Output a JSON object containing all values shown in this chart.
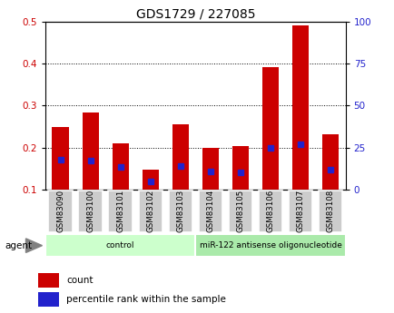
{
  "title": "GDS1729 / 227085",
  "samples": [
    "GSM83090",
    "GSM83100",
    "GSM83101",
    "GSM83102",
    "GSM83103",
    "GSM83104",
    "GSM83105",
    "GSM83106",
    "GSM83107",
    "GSM83108"
  ],
  "count_values": [
    0.248,
    0.283,
    0.209,
    0.148,
    0.256,
    0.2,
    0.204,
    0.393,
    0.491,
    0.231
  ],
  "percentile_values": [
    0.172,
    0.168,
    0.153,
    0.118,
    0.155,
    0.143,
    0.14,
    0.2,
    0.208,
    0.147
  ],
  "bar_color": "#cc0000",
  "marker_color": "#2222cc",
  "ylim": [
    0.1,
    0.5
  ],
  "yticks_left": [
    0.1,
    0.2,
    0.3,
    0.4,
    0.5
  ],
  "yticks_right": [
    0,
    25,
    50,
    75,
    100
  ],
  "ylabel_left_color": "#cc0000",
  "ylabel_right_color": "#2222cc",
  "groups": [
    {
      "label": "control",
      "start": 0,
      "end": 5,
      "color": "#ccffcc"
    },
    {
      "label": "miR-122 antisense oligonucleotide",
      "start": 5,
      "end": 10,
      "color": "#aaeaaa"
    }
  ],
  "agent_label": "agent",
  "legend_count_label": "count",
  "legend_percentile_label": "percentile rank within the sample",
  "bar_width": 0.55,
  "background_color": "#ffffff"
}
